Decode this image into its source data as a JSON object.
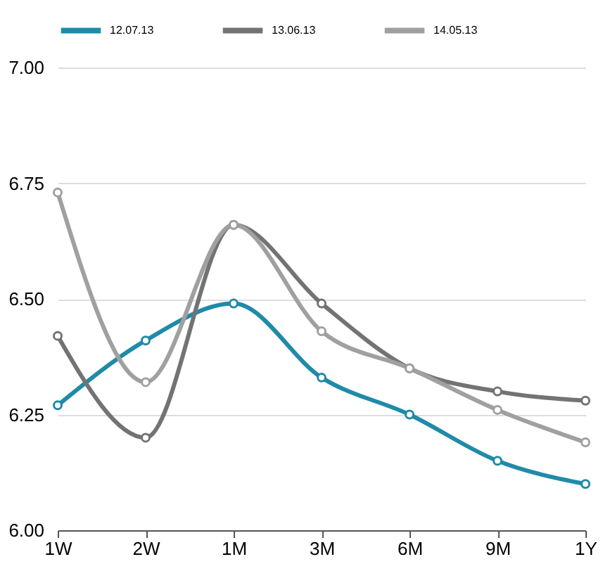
{
  "chart_data": {
    "type": "line",
    "categories": [
      "1W",
      "2W",
      "1M",
      "3M",
      "6M",
      "9M",
      "1Y"
    ],
    "series": [
      {
        "name": "12.07.13",
        "color": "#1f8ba8",
        "values": [
          6.27,
          6.41,
          6.49,
          6.33,
          6.25,
          6.15,
          6.1
        ]
      },
      {
        "name": "13.06.13",
        "color": "#737373",
        "values": [
          6.42,
          6.2,
          6.66,
          6.49,
          6.35,
          6.3,
          6.28
        ]
      },
      {
        "name": "14.05.13",
        "color": "#a0a0a0",
        "values": [
          6.73,
          6.32,
          6.66,
          6.43,
          6.35,
          6.26,
          6.19
        ]
      }
    ],
    "ylim": [
      6.0,
      7.0
    ],
    "yticks": [
      {
        "value": 6.0,
        "label": "6.00"
      },
      {
        "value": 6.25,
        "label": "6.25"
      },
      {
        "value": 6.5,
        "label": "6.50"
      },
      {
        "value": 6.75,
        "label": "6.75"
      },
      {
        "value": 7.0,
        "label": "7.00"
      }
    ],
    "grid": "y",
    "legend": "top",
    "marker": "circle",
    "line_style": "solid"
  }
}
